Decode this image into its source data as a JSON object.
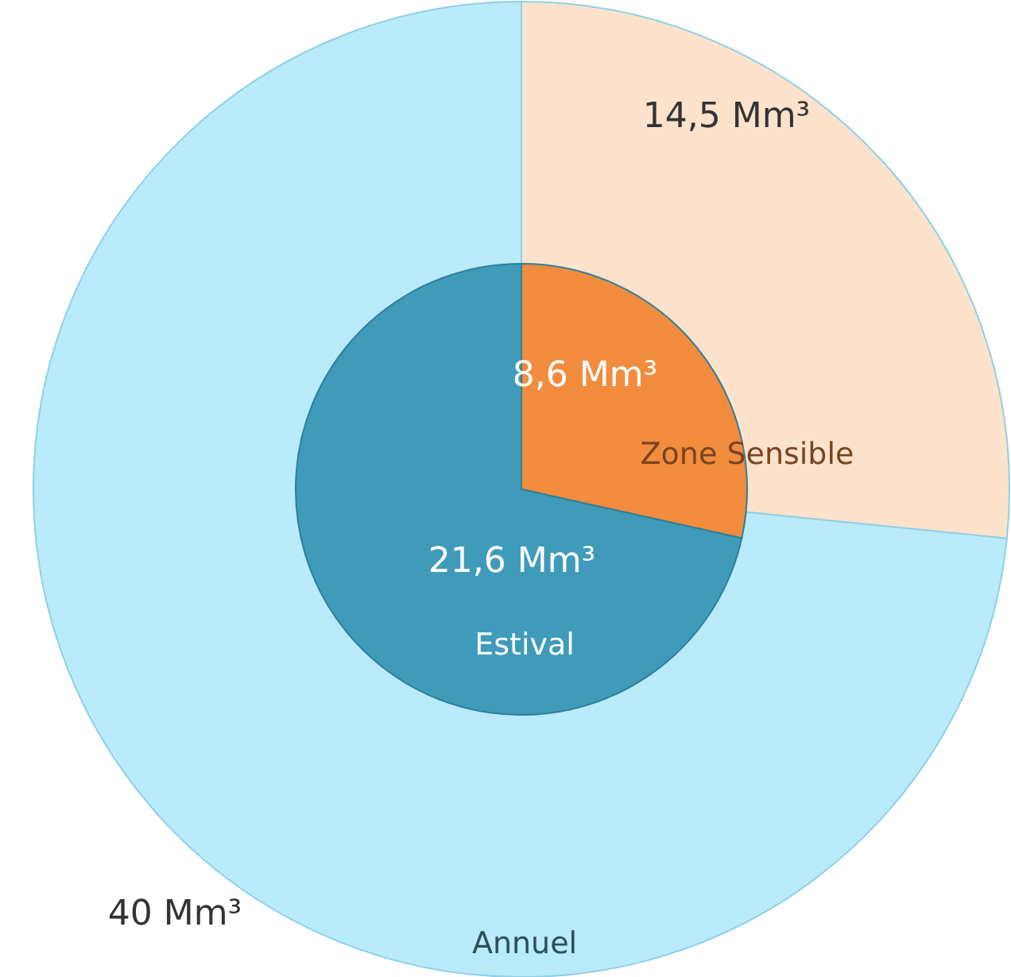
{
  "chart_data": {
    "type": "pie",
    "categories": [
      "Zone Sensible",
      null
    ],
    "series": [
      {
        "name": "Annuel",
        "colors": [
          "#fde2cc",
          "#b9ebfa"
        ],
        "values": [
          14.5,
          40
        ],
        "value_labels": [
          "14,5 Mm³",
          "40 Mm³"
        ]
      },
      {
        "name": "Estival",
        "colors": [
          "#f28c3e",
          "#3f9bb9"
        ],
        "values": [
          8.6,
          21.6
        ],
        "value_labels": [
          "8,6 Mm³",
          "21,6 Mm³"
        ]
      }
    ]
  }
}
